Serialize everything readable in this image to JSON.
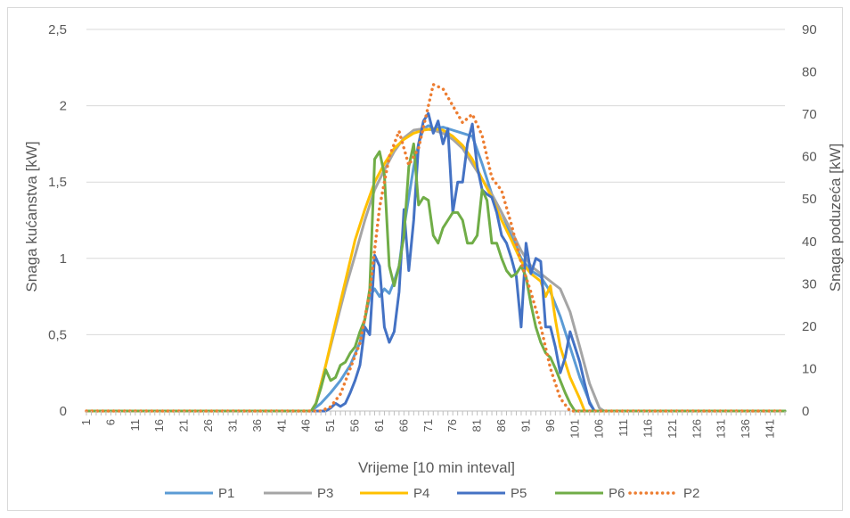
{
  "chart_data": {
    "type": "line",
    "title": "",
    "xlabel": "Vrijeme [10 min inteval]",
    "ylabel_left": "Snaga kućanstva [kW]",
    "ylabel_right": "Snaga poduzeća [kW]",
    "ylim_left": [
      0,
      2.5
    ],
    "ylim_right": [
      0,
      90
    ],
    "xlim": [
      1,
      144
    ],
    "y_ticks_left": [
      "0",
      "0,5",
      "1",
      "1,5",
      "2",
      "2,5"
    ],
    "y_ticks_right": [
      "0",
      "10",
      "20",
      "30",
      "40",
      "50",
      "60",
      "70",
      "80",
      "90"
    ],
    "x_ticks": [
      "1",
      "6",
      "11",
      "16",
      "21",
      "26",
      "31",
      "36",
      "41",
      "46",
      "51",
      "56",
      "61",
      "66",
      "71",
      "76",
      "81",
      "86",
      "91",
      "96",
      "101",
      "106",
      "111",
      "116",
      "121",
      "126",
      "131",
      "136",
      "141"
    ],
    "grid": true,
    "legend_position": "bottom",
    "series": [
      {
        "name": "P1",
        "axis": "left",
        "color": "#5b9bd5",
        "dash": "solid",
        "points": [
          [
            1,
            0
          ],
          [
            47,
            0
          ],
          [
            49,
            0.05
          ],
          [
            51,
            0.12
          ],
          [
            53,
            0.2
          ],
          [
            55,
            0.3
          ],
          [
            57,
            0.45
          ],
          [
            58,
            0.6
          ],
          [
            59,
            0.75
          ],
          [
            60,
            0.8
          ],
          [
            61,
            0.75
          ],
          [
            62,
            0.8
          ],
          [
            63,
            0.77
          ],
          [
            64,
            0.85
          ],
          [
            65,
            0.95
          ],
          [
            66,
            1.2
          ],
          [
            67,
            1.4
          ],
          [
            68,
            1.6
          ],
          [
            69,
            1.75
          ],
          [
            70,
            1.85
          ],
          [
            71,
            1.87
          ],
          [
            72,
            1.85
          ],
          [
            74,
            1.86
          ],
          [
            76,
            1.84
          ],
          [
            78,
            1.82
          ],
          [
            80,
            1.8
          ],
          [
            82,
            1.62
          ],
          [
            84,
            1.42
          ],
          [
            86,
            1.3
          ],
          [
            88,
            1.15
          ],
          [
            90,
            1.0
          ],
          [
            92,
            0.92
          ],
          [
            94,
            0.88
          ],
          [
            96,
            0.78
          ],
          [
            98,
            0.62
          ],
          [
            100,
            0.42
          ],
          [
            102,
            0.22
          ],
          [
            104,
            0.06
          ],
          [
            105,
            0
          ],
          [
            144,
            0
          ]
        ]
      },
      {
        "name": "P3",
        "axis": "left",
        "color": "#a5a5a5",
        "dash": "solid",
        "points": [
          [
            1,
            0
          ],
          [
            47,
            0
          ],
          [
            48,
            0.05
          ],
          [
            50,
            0.3
          ],
          [
            52,
            0.55
          ],
          [
            54,
            0.8
          ],
          [
            56,
            1.02
          ],
          [
            58,
            1.25
          ],
          [
            60,
            1.45
          ],
          [
            62,
            1.58
          ],
          [
            64,
            1.7
          ],
          [
            66,
            1.79
          ],
          [
            68,
            1.84
          ],
          [
            70,
            1.85
          ],
          [
            72,
            1.84
          ],
          [
            74,
            1.82
          ],
          [
            76,
            1.78
          ],
          [
            78,
            1.72
          ],
          [
            80,
            1.62
          ],
          [
            82,
            1.52
          ],
          [
            84,
            1.42
          ],
          [
            86,
            1.3
          ],
          [
            88,
            1.18
          ],
          [
            90,
            1.05
          ],
          [
            92,
            0.95
          ],
          [
            94,
            0.9
          ],
          [
            96,
            0.85
          ],
          [
            98,
            0.8
          ],
          [
            100,
            0.65
          ],
          [
            102,
            0.42
          ],
          [
            104,
            0.18
          ],
          [
            106,
            0.02
          ],
          [
            107,
            0
          ],
          [
            144,
            0
          ]
        ]
      },
      {
        "name": "P4",
        "axis": "left",
        "color": "#ffc000",
        "dash": "solid",
        "points": [
          [
            1,
            0
          ],
          [
            47,
            0
          ],
          [
            48,
            0.05
          ],
          [
            50,
            0.3
          ],
          [
            52,
            0.58
          ],
          [
            54,
            0.85
          ],
          [
            56,
            1.12
          ],
          [
            58,
            1.32
          ],
          [
            60,
            1.5
          ],
          [
            62,
            1.62
          ],
          [
            64,
            1.72
          ],
          [
            66,
            1.78
          ],
          [
            68,
            1.82
          ],
          [
            70,
            1.84
          ],
          [
            72,
            1.85
          ],
          [
            74,
            1.84
          ],
          [
            76,
            1.8
          ],
          [
            78,
            1.74
          ],
          [
            80,
            1.65
          ],
          [
            82,
            1.52
          ],
          [
            84,
            1.4
          ],
          [
            86,
            1.25
          ],
          [
            88,
            1.12
          ],
          [
            90,
            0.98
          ],
          [
            92,
            0.9
          ],
          [
            94,
            0.85
          ],
          [
            95,
            0.75
          ],
          [
            96,
            0.82
          ],
          [
            97,
            0.6
          ],
          [
            98,
            0.42
          ],
          [
            100,
            0.22
          ],
          [
            102,
            0.08
          ],
          [
            103,
            0
          ],
          [
            144,
            0
          ]
        ]
      },
      {
        "name": "P5",
        "axis": "left",
        "color": "#4472c4",
        "dash": "solid",
        "points": [
          [
            1,
            0
          ],
          [
            48,
            0
          ],
          [
            50,
            0
          ],
          [
            51,
            0.02
          ],
          [
            52,
            0.05
          ],
          [
            53,
            0.03
          ],
          [
            54,
            0.05
          ],
          [
            55,
            0.12
          ],
          [
            56,
            0.2
          ],
          [
            57,
            0.3
          ],
          [
            58,
            0.55
          ],
          [
            59,
            0.5
          ],
          [
            60,
            1.02
          ],
          [
            61,
            0.95
          ],
          [
            62,
            0.55
          ],
          [
            63,
            0.45
          ],
          [
            64,
            0.52
          ],
          [
            65,
            0.78
          ],
          [
            66,
            1.32
          ],
          [
            67,
            0.92
          ],
          [
            68,
            1.25
          ],
          [
            69,
            1.75
          ],
          [
            70,
            1.9
          ],
          [
            71,
            1.95
          ],
          [
            72,
            1.82
          ],
          [
            73,
            1.9
          ],
          [
            74,
            1.75
          ],
          [
            75,
            1.85
          ],
          [
            76,
            1.3
          ],
          [
            77,
            1.5
          ],
          [
            78,
            1.5
          ],
          [
            79,
            1.75
          ],
          [
            80,
            1.88
          ],
          [
            81,
            1.6
          ],
          [
            82,
            1.45
          ],
          [
            83,
            1.42
          ],
          [
            84,
            1.4
          ],
          [
            85,
            1.3
          ],
          [
            86,
            1.15
          ],
          [
            87,
            1.1
          ],
          [
            88,
            1.0
          ],
          [
            89,
            0.88
          ],
          [
            90,
            0.55
          ],
          [
            91,
            1.1
          ],
          [
            92,
            0.9
          ],
          [
            93,
            1.0
          ],
          [
            94,
            0.98
          ],
          [
            95,
            0.55
          ],
          [
            96,
            0.55
          ],
          [
            97,
            0.42
          ],
          [
            98,
            0.25
          ],
          [
            99,
            0.35
          ],
          [
            100,
            0.52
          ],
          [
            101,
            0.42
          ],
          [
            102,
            0.32
          ],
          [
            103,
            0.18
          ],
          [
            104,
            0.05
          ],
          [
            105,
            0
          ],
          [
            144,
            0
          ]
        ]
      },
      {
        "name": "P6",
        "axis": "left",
        "color": "#70ad47",
        "dash": "solid",
        "points": [
          [
            1,
            0
          ],
          [
            47,
            0
          ],
          [
            48,
            0.05
          ],
          [
            49,
            0.15
          ],
          [
            50,
            0.27
          ],
          [
            51,
            0.2
          ],
          [
            52,
            0.22
          ],
          [
            53,
            0.3
          ],
          [
            54,
            0.32
          ],
          [
            55,
            0.38
          ],
          [
            56,
            0.42
          ],
          [
            57,
            0.52
          ],
          [
            58,
            0.6
          ],
          [
            59,
            0.8
          ],
          [
            60,
            1.65
          ],
          [
            61,
            1.7
          ],
          [
            62,
            1.55
          ],
          [
            63,
            0.95
          ],
          [
            64,
            0.82
          ],
          [
            65,
            0.95
          ],
          [
            66,
            1.15
          ],
          [
            67,
            1.6
          ],
          [
            68,
            1.75
          ],
          [
            69,
            1.35
          ],
          [
            70,
            1.4
          ],
          [
            71,
            1.38
          ],
          [
            72,
            1.15
          ],
          [
            73,
            1.1
          ],
          [
            74,
            1.2
          ],
          [
            75,
            1.25
          ],
          [
            76,
            1.3
          ],
          [
            77,
            1.3
          ],
          [
            78,
            1.25
          ],
          [
            79,
            1.1
          ],
          [
            80,
            1.1
          ],
          [
            81,
            1.15
          ],
          [
            82,
            1.45
          ],
          [
            83,
            1.38
          ],
          [
            84,
            1.1
          ],
          [
            85,
            1.1
          ],
          [
            86,
            1.0
          ],
          [
            87,
            0.92
          ],
          [
            88,
            0.88
          ],
          [
            89,
            0.9
          ],
          [
            90,
            0.95
          ],
          [
            91,
            0.88
          ],
          [
            92,
            0.7
          ],
          [
            93,
            0.55
          ],
          [
            94,
            0.45
          ],
          [
            95,
            0.38
          ],
          [
            96,
            0.35
          ],
          [
            97,
            0.28
          ],
          [
            98,
            0.2
          ],
          [
            99,
            0.12
          ],
          [
            100,
            0.05
          ],
          [
            101,
            0
          ],
          [
            144,
            0
          ]
        ]
      },
      {
        "name": "P2",
        "axis": "right",
        "color": "#ed7d31",
        "dash": "dotted",
        "points": [
          [
            1,
            0
          ],
          [
            49,
            0
          ],
          [
            51,
            1
          ],
          [
            53,
            4
          ],
          [
            55,
            10
          ],
          [
            57,
            16
          ],
          [
            59,
            28
          ],
          [
            61,
            48
          ],
          [
            63,
            60
          ],
          [
            65,
            66
          ],
          [
            67,
            58
          ],
          [
            69,
            62
          ],
          [
            71,
            72
          ],
          [
            72,
            77
          ],
          [
            74,
            76
          ],
          [
            76,
            72
          ],
          [
            78,
            68
          ],
          [
            80,
            70
          ],
          [
            82,
            65
          ],
          [
            84,
            55
          ],
          [
            86,
            52
          ],
          [
            88,
            44
          ],
          [
            90,
            35
          ],
          [
            92,
            28
          ],
          [
            94,
            20
          ],
          [
            96,
            10
          ],
          [
            98,
            3
          ],
          [
            100,
            0
          ],
          [
            144,
            0
          ]
        ]
      }
    ]
  }
}
